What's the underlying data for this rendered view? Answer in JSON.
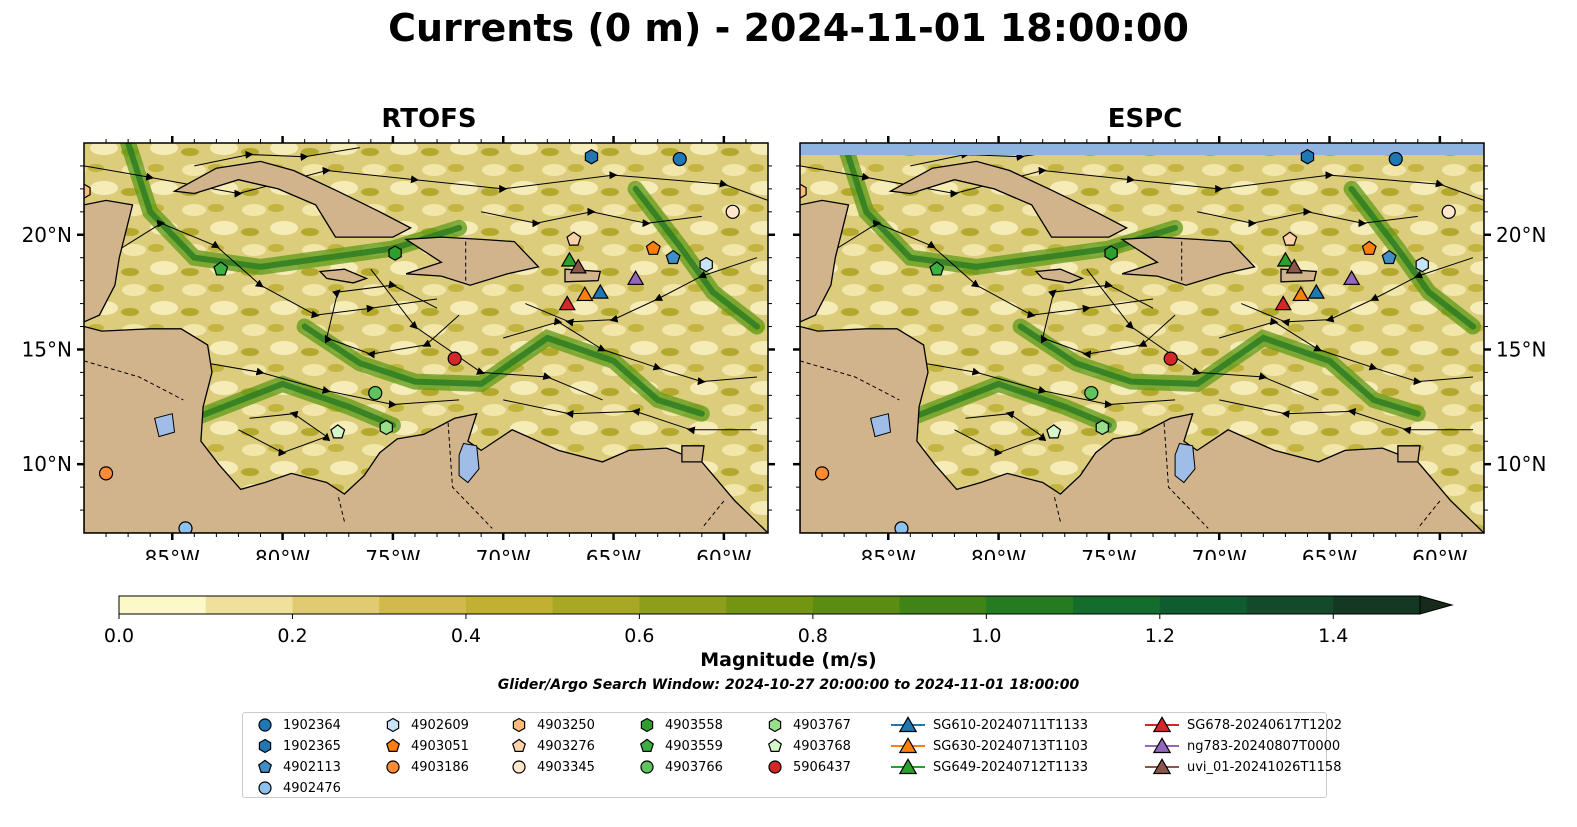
{
  "title": "Currents (0 m) - 2024-11-01 18:00:00",
  "panels": [
    {
      "title": "RTOFS"
    },
    {
      "title": "ESPC"
    }
  ],
  "map": {
    "lon_range": [
      -89,
      -58
    ],
    "lat_range": [
      7,
      24
    ],
    "lon_ticks": [
      {
        "value": -85,
        "label": "85°W"
      },
      {
        "value": -80,
        "label": "80°W"
      },
      {
        "value": -75,
        "label": "75°W"
      },
      {
        "value": -70,
        "label": "70°W"
      },
      {
        "value": -65,
        "label": "65°W"
      },
      {
        "value": -60,
        "label": "60°W"
      }
    ],
    "lat_ticks": [
      {
        "value": 10,
        "label": "10°N"
      },
      {
        "value": 15,
        "label": "15°N"
      },
      {
        "value": 20,
        "label": "20°N"
      }
    ],
    "colors": {
      "land": "#d2b48c",
      "water": "#a4bfd8",
      "masked_band": "#8fb4e0"
    }
  },
  "colorbar": {
    "label": "Magnitude (m/s)",
    "min": 0.0,
    "max": 1.5,
    "step": 0.1,
    "extend": "max",
    "tick_values": [
      0.0,
      0.2,
      0.4,
      0.6,
      0.8,
      1.0,
      1.2,
      1.4
    ],
    "tick_labels": [
      "0.0",
      "0.2",
      "0.4",
      "0.6",
      "0.8",
      "1.0",
      "1.2",
      "1.4"
    ],
    "colors": [
      "#fdf8c8",
      "#efe19c",
      "#e0cb72",
      "#d1b94b",
      "#c1b032",
      "#a9a824",
      "#8e9e1a",
      "#749512",
      "#5b8c14",
      "#408417",
      "#257b20",
      "#146d2d",
      "#105c31",
      "#124a2b",
      "#153823",
      "#182a1c"
    ],
    "extend_color": "#182a1c"
  },
  "search_window": "Glider/Argo Search Window: 2024-10-27 20:00:00 to 2024-11-01 18:00:00",
  "platforms": [
    {
      "id": "1902364",
      "marker": "circle",
      "color": "#1f77b4",
      "lon": -62.0,
      "lat": 23.3
    },
    {
      "id": "1902365",
      "marker": "hexagon",
      "color": "#1f77b4",
      "lon": -66.0,
      "lat": 23.4
    },
    {
      "id": "4902113",
      "marker": "pentagon",
      "color": "#3f8ec8",
      "lon": -62.3,
      "lat": 19.0
    },
    {
      "id": "4902476",
      "marker": "circle",
      "color": "#8ec2ee",
      "lon": -84.4,
      "lat": 7.2
    },
    {
      "id": "4902609",
      "marker": "hexagon",
      "color": "#c6e3f7",
      "lon": -60.8,
      "lat": 18.7
    },
    {
      "id": "4903051",
      "marker": "pentagon",
      "color": "#ff7f0e",
      "lon": -63.2,
      "lat": 19.4
    },
    {
      "id": "4903186",
      "marker": "circle",
      "color": "#ff8c33",
      "lon": -88.0,
      "lat": 9.6
    },
    {
      "id": "4903250",
      "marker": "hexagon",
      "color": "#ffbb78",
      "lon": -89.0,
      "lat": 21.9
    },
    {
      "id": "4903276",
      "marker": "pentagon",
      "color": "#ffd2a8",
      "lon": -66.8,
      "lat": 19.8
    },
    {
      "id": "4903345",
      "marker": "circle",
      "color": "#ffe6cc",
      "lon": -59.6,
      "lat": 21.0
    },
    {
      "id": "4903558",
      "marker": "hexagon",
      "color": "#2ca02c",
      "lon": -74.9,
      "lat": 19.2
    },
    {
      "id": "4903559",
      "marker": "pentagon",
      "color": "#3cb043",
      "lon": -82.8,
      "lat": 18.5
    },
    {
      "id": "4903766",
      "marker": "circle",
      "color": "#5fc35f",
      "lon": -75.8,
      "lat": 13.1
    },
    {
      "id": "4903767",
      "marker": "hexagon",
      "color": "#98df8a",
      "lon": -75.3,
      "lat": 11.6
    },
    {
      "id": "4903768",
      "marker": "pentagon",
      "color": "#d4f7c9",
      "lon": -77.5,
      "lat": 11.4
    },
    {
      "id": "5906437",
      "marker": "circle",
      "color": "#d62728",
      "lon": -72.2,
      "lat": 14.6
    },
    {
      "id": "SG610-20240711T1133",
      "marker": "triangle",
      "color": "#1f77b4",
      "line": true,
      "lon": -65.6,
      "lat": 17.5
    },
    {
      "id": "SG630-20240713T1103",
      "marker": "triangle",
      "color": "#ff7f0e",
      "line": true,
      "lon": -66.3,
      "lat": 17.4
    },
    {
      "id": "SG649-20240712T1133",
      "marker": "triangle",
      "color": "#2ca02c",
      "line": true,
      "lon": -67.0,
      "lat": 18.9
    },
    {
      "id": "SG678-20240617T1202",
      "marker": "triangle",
      "color": "#d62728",
      "line": true,
      "lon": -67.1,
      "lat": 17.0
    },
    {
      "id": "ng783-20240807T0000",
      "marker": "triangle",
      "color": "#9467bd",
      "line": true,
      "lon": -64.0,
      "lat": 18.1
    },
    {
      "id": "uvi_01-20241026T1158",
      "marker": "triangle",
      "color": "#8c564b",
      "line": true,
      "lon": -66.6,
      "lat": 18.6
    }
  ]
}
